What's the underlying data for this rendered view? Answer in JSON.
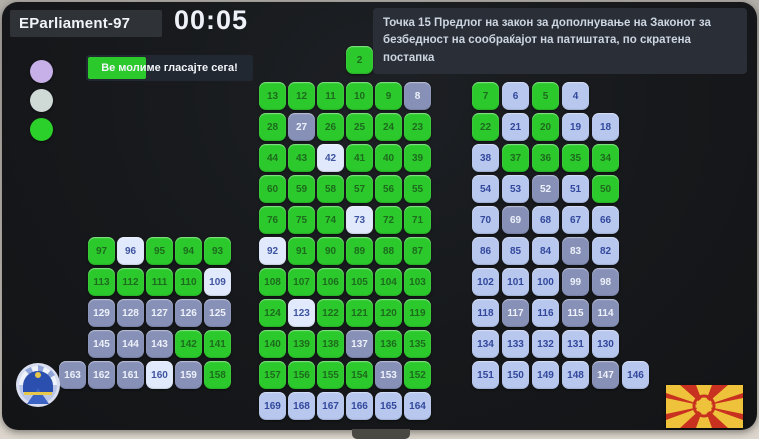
{
  "window": {
    "title": "EParliament-97",
    "timer": "00:05"
  },
  "vote_prompt": {
    "text": "Ве молиме гласајте сега!",
    "progress_percent": 35,
    "fill_color": "#2bc92b"
  },
  "agenda_text": "Точка 15 Предлог на закон за дополнување на Законот за безбедност на сообраќајот на патиштата, по скратена постапка",
  "legend_colors": [
    "#c7b0e8",
    "#cfd9d6",
    "#2bd02b"
  ],
  "seat_states": {
    "g": {
      "name": "green",
      "color": "#2cc92c"
    },
    "b": {
      "name": "light-blue",
      "color": "#b7c7ee"
    },
    "k": {
      "name": "gray-blue",
      "color": "#8791b8"
    },
    "w": {
      "name": "white-blue",
      "color": "#e0eafc"
    }
  },
  "hall": {
    "top_seat": {
      "n": "2",
      "s": "g"
    },
    "left_block": {
      "rows": [
        {
          "indent": 1,
          "seats": [
            [
              "97",
              "g"
            ],
            [
              "96",
              "w"
            ],
            [
              "95",
              "g"
            ],
            [
              "94",
              "g"
            ],
            [
              "93",
              "g"
            ]
          ]
        },
        {
          "indent": 1,
          "seats": [
            [
              "113",
              "g"
            ],
            [
              "112",
              "g"
            ],
            [
              "111",
              "g"
            ],
            [
              "110",
              "g"
            ],
            [
              "109",
              "w"
            ]
          ]
        },
        {
          "indent": 1,
          "seats": [
            [
              "129",
              "k"
            ],
            [
              "128",
              "k"
            ],
            [
              "127",
              "k"
            ],
            [
              "126",
              "k"
            ],
            [
              "125",
              "k"
            ]
          ]
        },
        {
          "indent": 1,
          "seats": [
            [
              "145",
              "k"
            ],
            [
              "144",
              "k"
            ],
            [
              "143",
              "k"
            ],
            [
              "142",
              "g"
            ],
            [
              "141",
              "g"
            ]
          ]
        },
        {
          "indent": 0,
          "seats": [
            [
              "163",
              "k"
            ],
            [
              "162",
              "k"
            ],
            [
              "161",
              "k"
            ],
            [
              "160",
              "w"
            ],
            [
              "159",
              "k"
            ],
            [
              "158",
              "g"
            ]
          ]
        }
      ]
    },
    "center_block": {
      "rows": [
        {
          "seats": [
            [
              "13",
              "g"
            ],
            [
              "12",
              "g"
            ],
            [
              "11",
              "g"
            ],
            [
              "10",
              "g"
            ],
            [
              "9",
              "g"
            ],
            [
              "8",
              "k"
            ]
          ]
        },
        {
          "seats": [
            [
              "28",
              "g"
            ],
            [
              "27",
              "k"
            ],
            [
              "26",
              "g"
            ],
            [
              "25",
              "g"
            ],
            [
              "24",
              "g"
            ],
            [
              "23",
              "g"
            ]
          ]
        },
        {
          "seats": [
            [
              "44",
              "g"
            ],
            [
              "43",
              "g"
            ],
            [
              "42",
              "w"
            ],
            [
              "41",
              "g"
            ],
            [
              "40",
              "g"
            ],
            [
              "39",
              "g"
            ]
          ]
        },
        {
          "seats": [
            [
              "60",
              "g"
            ],
            [
              "59",
              "g"
            ],
            [
              "58",
              "g"
            ],
            [
              "57",
              "g"
            ],
            [
              "56",
              "g"
            ],
            [
              "55",
              "g"
            ]
          ]
        },
        {
          "seats": [
            [
              "76",
              "g"
            ],
            [
              "75",
              "g"
            ],
            [
              "74",
              "g"
            ],
            [
              "73",
              "w"
            ],
            [
              "72",
              "g"
            ],
            [
              "71",
              "g"
            ]
          ]
        },
        {
          "seats": [
            [
              "92",
              "w"
            ],
            [
              "91",
              "g"
            ],
            [
              "90",
              "g"
            ],
            [
              "89",
              "g"
            ],
            [
              "88",
              "g"
            ],
            [
              "87",
              "g"
            ]
          ]
        },
        {
          "seats": [
            [
              "108",
              "g"
            ],
            [
              "107",
              "g"
            ],
            [
              "106",
              "g"
            ],
            [
              "105",
              "g"
            ],
            [
              "104",
              "g"
            ],
            [
              "103",
              "g"
            ]
          ]
        },
        {
          "seats": [
            [
              "124",
              "g"
            ],
            [
              "123",
              "w"
            ],
            [
              "122",
              "g"
            ],
            [
              "121",
              "g"
            ],
            [
              "120",
              "g"
            ],
            [
              "119",
              "g"
            ]
          ]
        },
        {
          "seats": [
            [
              "140",
              "g"
            ],
            [
              "139",
              "g"
            ],
            [
              "138",
              "g"
            ],
            [
              "137",
              "k"
            ],
            [
              "136",
              "g"
            ],
            [
              "135",
              "g"
            ]
          ]
        },
        {
          "seats": [
            [
              "157",
              "g"
            ],
            [
              "156",
              "g"
            ],
            [
              "155",
              "g"
            ],
            [
              "154",
              "g"
            ],
            [
              "153",
              "k"
            ],
            [
              "152",
              "g"
            ]
          ]
        },
        {
          "seats": [
            [
              "169",
              "b"
            ],
            [
              "168",
              "b"
            ],
            [
              "167",
              "b"
            ],
            [
              "166",
              "b"
            ],
            [
              "165",
              "b"
            ],
            [
              "164",
              "b"
            ]
          ]
        }
      ]
    },
    "right_block": {
      "rows": [
        {
          "seats": [
            [
              "7",
              "g"
            ],
            [
              "6",
              "b"
            ],
            [
              "5",
              "g"
            ],
            [
              "4",
              "b"
            ]
          ]
        },
        {
          "seats": [
            [
              "22",
              "g"
            ],
            [
              "21",
              "b"
            ],
            [
              "20",
              "g"
            ],
            [
              "19",
              "b"
            ],
            [
              "18",
              "b"
            ]
          ]
        },
        {
          "seats": [
            [
              "38",
              "b"
            ],
            [
              "37",
              "g"
            ],
            [
              "36",
              "g"
            ],
            [
              "35",
              "g"
            ],
            [
              "34",
              "g"
            ]
          ]
        },
        {
          "seats": [
            [
              "54",
              "b"
            ],
            [
              "53",
              "b"
            ],
            [
              "52",
              "k"
            ],
            [
              "51",
              "b"
            ],
            [
              "50",
              "g"
            ]
          ]
        },
        {
          "seats": [
            [
              "70",
              "b"
            ],
            [
              "69",
              "k"
            ],
            [
              "68",
              "b"
            ],
            [
              "67",
              "b"
            ],
            [
              "66",
              "b"
            ]
          ]
        },
        {
          "seats": [
            [
              "86",
              "b"
            ],
            [
              "85",
              "b"
            ],
            [
              "84",
              "b"
            ],
            [
              "83",
              "k"
            ],
            [
              "82",
              "b"
            ]
          ]
        },
        {
          "seats": [
            [
              "102",
              "b"
            ],
            [
              "101",
              "b"
            ],
            [
              "100",
              "b"
            ],
            [
              "99",
              "k"
            ],
            [
              "98",
              "k"
            ]
          ]
        },
        {
          "seats": [
            [
              "118",
              "b"
            ],
            [
              "117",
              "k"
            ],
            [
              "116",
              "b"
            ],
            [
              "115",
              "k"
            ],
            [
              "114",
              "k"
            ]
          ]
        },
        {
          "seats": [
            [
              "134",
              "b"
            ],
            [
              "133",
              "b"
            ],
            [
              "132",
              "b"
            ],
            [
              "131",
              "b"
            ],
            [
              "130",
              "b"
            ]
          ]
        },
        {
          "seats": [
            [
              "151",
              "b"
            ],
            [
              "150",
              "b"
            ],
            [
              "149",
              "b"
            ],
            [
              "148",
              "b"
            ],
            [
              "147",
              "k"
            ],
            [
              "146",
              "b"
            ]
          ]
        }
      ]
    }
  },
  "icons": {
    "emblem": "assembly-emblem-icon",
    "flag": "macedonia-flag-icon"
  }
}
